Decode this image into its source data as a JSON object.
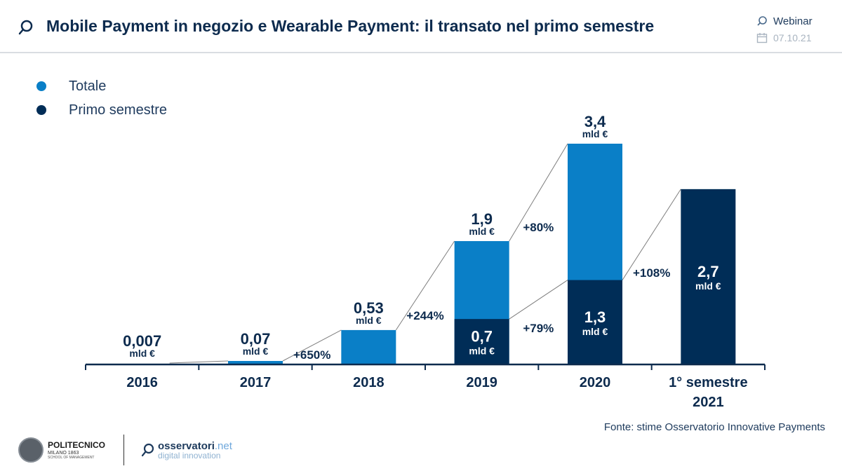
{
  "header": {
    "title": "Mobile Payment in negozio e Wearable Payment: il transato nel primo semestre",
    "event": "Webinar",
    "date": "07.10.21"
  },
  "colors": {
    "totale": "#0a7fc7",
    "primo": "#002d57",
    "navy": "#0d2b4e"
  },
  "chart_data": {
    "type": "bar",
    "title": "Mobile Payment in negozio e Wearable Payment: il transato nel primo semestre",
    "unit": "mld €",
    "categories": [
      "2016",
      "2017",
      "2018",
      "2019",
      "2020",
      "1° semestre 2021"
    ],
    "legend": [
      "Totale",
      "Primo semestre"
    ],
    "legend_position": "top-left",
    "series": [
      {
        "name": "Totale",
        "values": [
          0.007,
          0.07,
          0.53,
          1.9,
          3.4,
          null
        ]
      },
      {
        "name": "Primo semestre",
        "values": [
          null,
          null,
          null,
          0.7,
          1.3,
          2.7
        ]
      }
    ],
    "value_labels": {
      "totale": [
        "0,007",
        "0,07",
        "0,53",
        "1,9",
        "3,4",
        null
      ],
      "primo": [
        null,
        null,
        null,
        "0,7",
        "1,3",
        "2,7"
      ]
    },
    "growth_labels": {
      "totale": [
        "+650%",
        "+244%",
        "+80%"
      ],
      "primo": [
        "+79%",
        "+108%"
      ]
    },
    "ylim": [
      0,
      4
    ],
    "grid": false
  },
  "source": "Fonte: stime Osservatorio Innovative Payments",
  "footer": {
    "polimi_name": "POLITECNICO",
    "polimi_sub": "MILANO 1863",
    "polimi_school": "SCHOOL OF MANAGEMENT",
    "osservatori_a": "osservatori",
    "osservatori_b": ".net",
    "osservatori_c": "digital innovation"
  }
}
